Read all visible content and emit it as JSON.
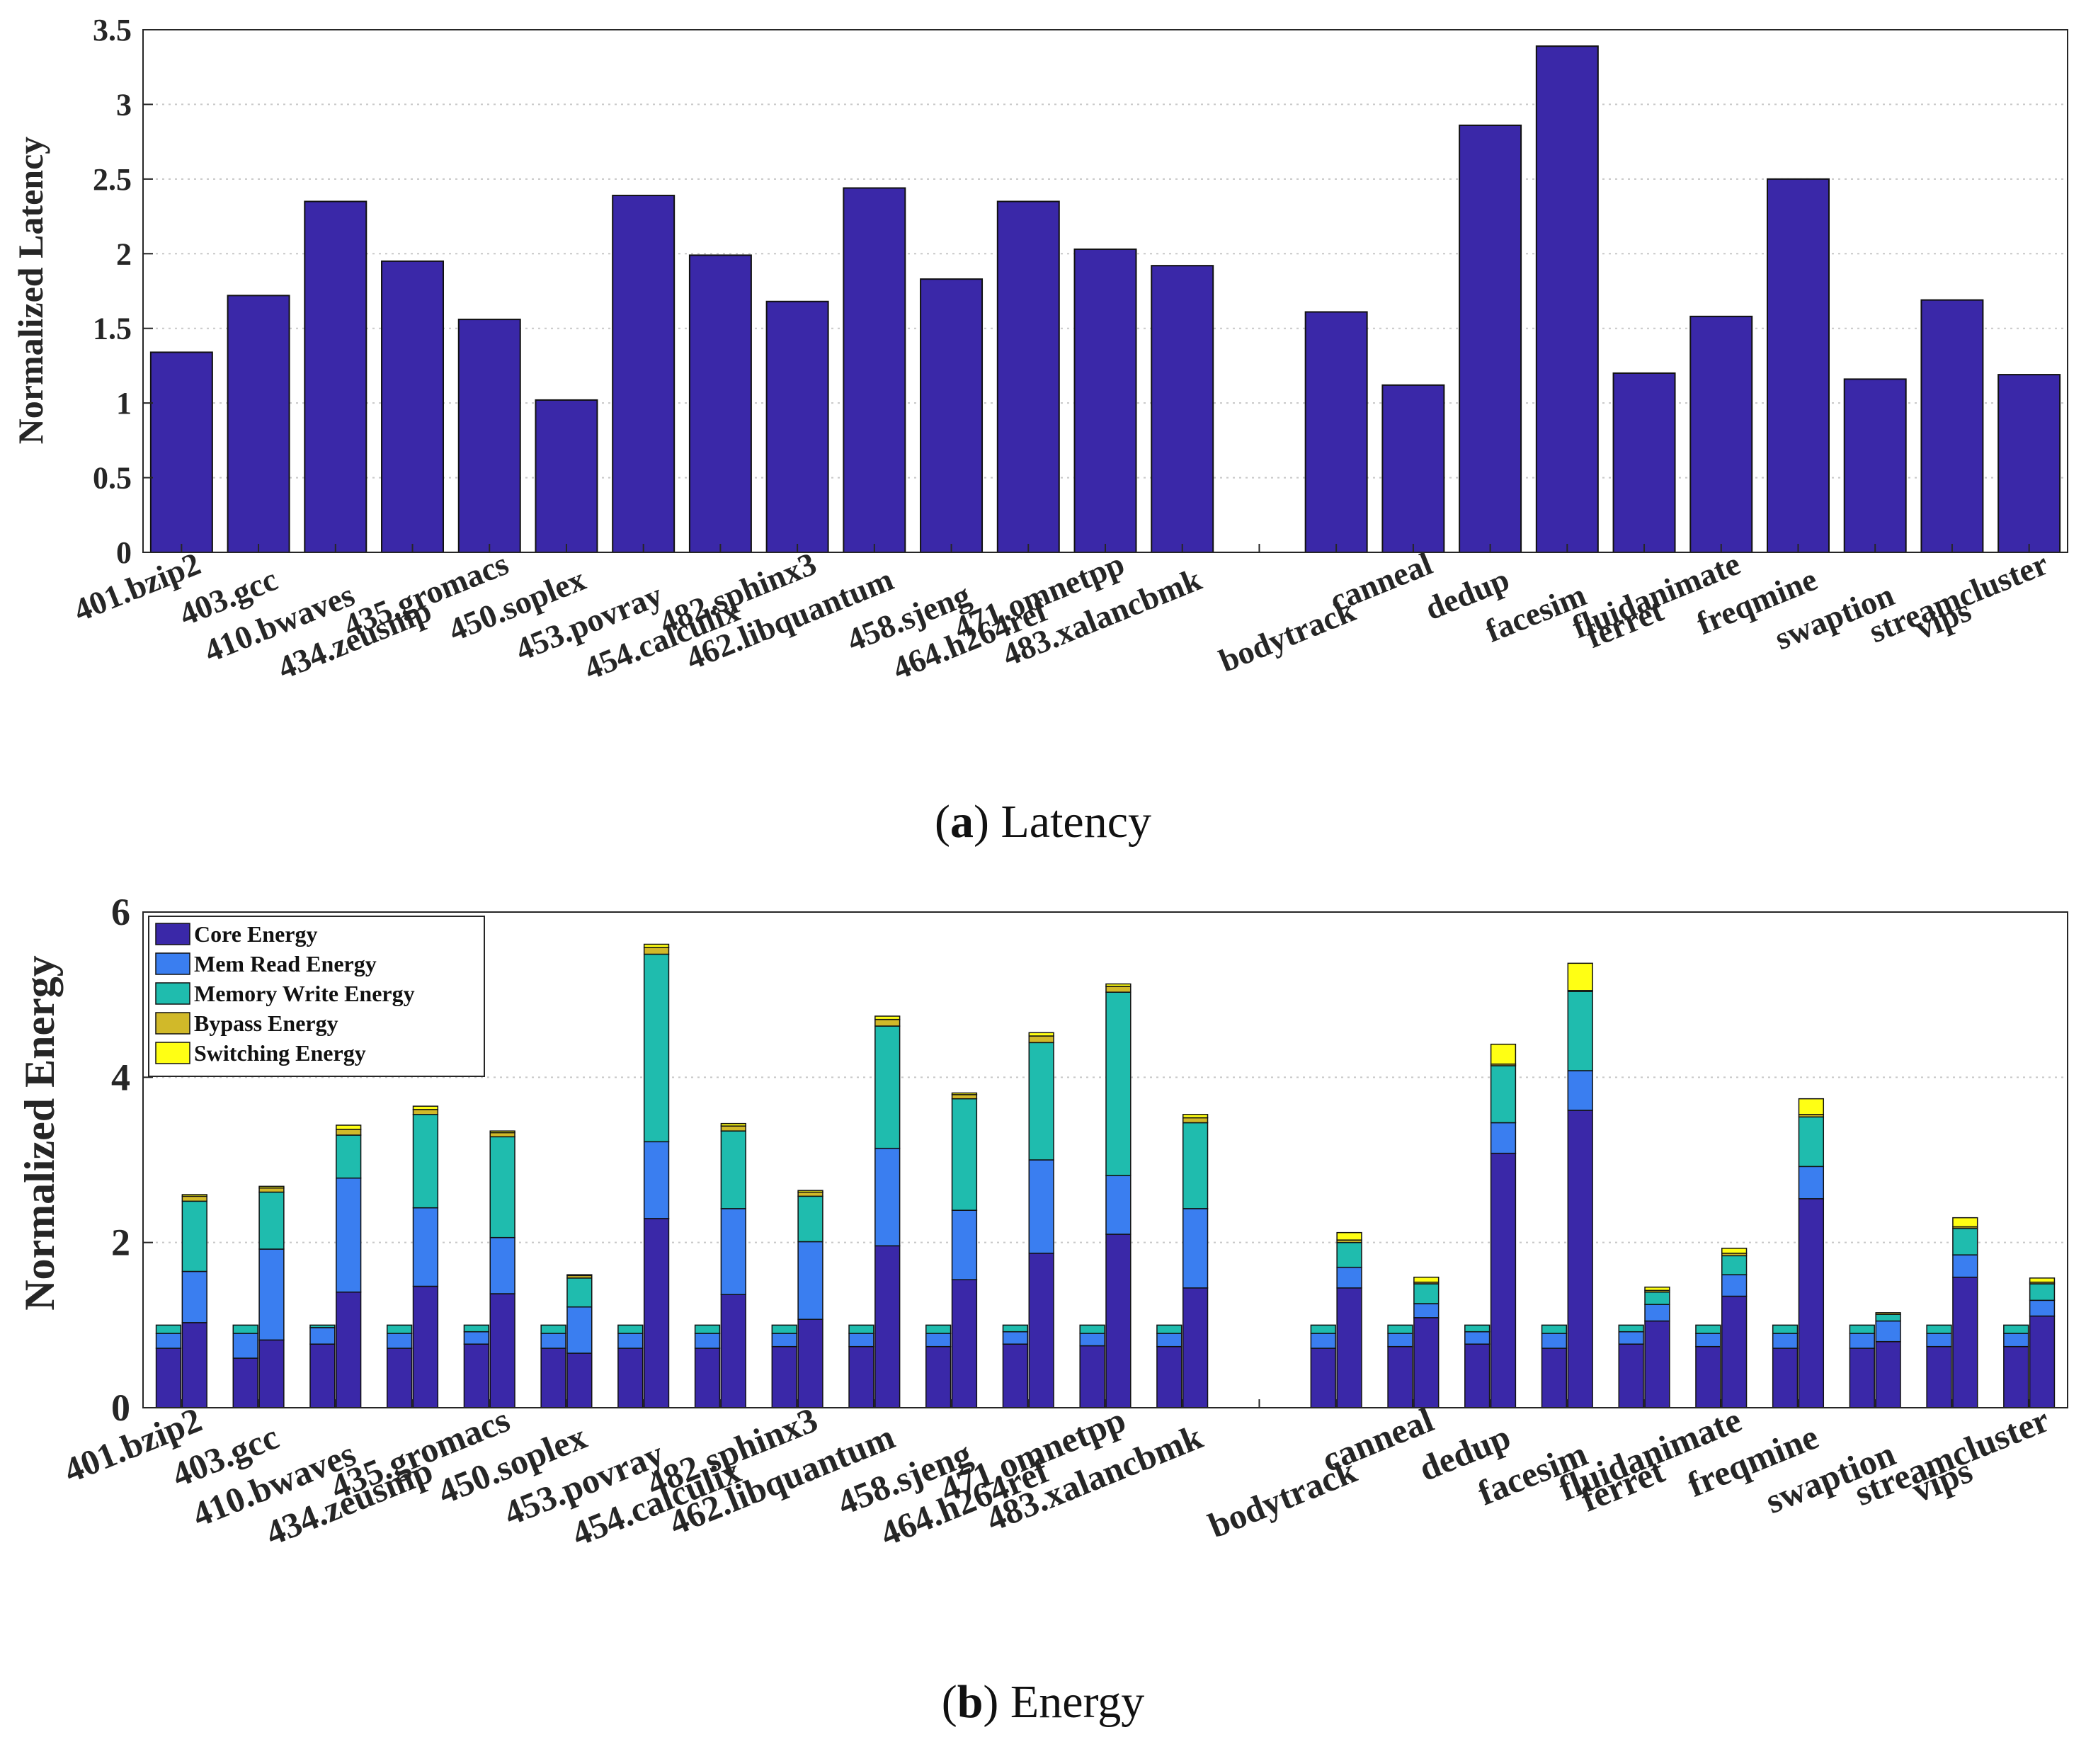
{
  "captions": {
    "a_letter": "a",
    "a_text": "Latency",
    "b_letter": "b",
    "b_text": "Energy"
  },
  "chart_data": [
    {
      "type": "bar",
      "ylabel": "Normalized Latency",
      "ylim": [
        0,
        3.5
      ],
      "yticks": [
        "0",
        "0.5",
        "1",
        "1.5",
        "2",
        "2.5",
        "3",
        "3.5"
      ],
      "grid": true,
      "categories": [
        "401.bzip2",
        "403.gcc",
        "410.bwaves",
        "434.zeusmp",
        "435.gromacs",
        "450.soplex",
        "453.povray",
        "454.calculix",
        "482.sphinx3",
        "462.libquantum",
        "458.sjeng",
        "464.h264ref",
        "471.omnetpp",
        "483.xalancbmk",
        "",
        "bodytrack",
        "canneal",
        "dedup",
        "facesim",
        "ferret",
        "fluidanimate",
        "freqmine",
        "swaption",
        "vips",
        "streamcluster"
      ],
      "values": [
        1.34,
        1.72,
        2.35,
        1.95,
        1.56,
        1.02,
        2.39,
        1.99,
        1.68,
        2.44,
        1.83,
        2.35,
        2.03,
        1.92,
        0,
        1.61,
        1.12,
        2.86,
        3.39,
        1.2,
        1.58,
        2.5,
        1.16,
        1.69,
        1.19
      ],
      "color": "#3a28a8"
    },
    {
      "type": "bar",
      "ylabel": "Normalized Energy",
      "ylim": [
        0,
        6
      ],
      "yticks": [
        "0",
        "2",
        "4",
        "6"
      ],
      "grid": true,
      "legend_position": "top-left",
      "categories": [
        "401.bzip2",
        "403.gcc",
        "410.bwaves",
        "434.zeusmp",
        "435.gromacs",
        "450.soplex",
        "453.povray",
        "454.calculix",
        "482.sphinx3",
        "462.libquantum",
        "458.sjeng",
        "464.h264ref",
        "471.omnetpp",
        "483.xalancbmk",
        "",
        "bodytrack",
        "canneal",
        "dedup",
        "facesim",
        "ferret",
        "fluidanimate",
        "freqmine",
        "swaption",
        "vips",
        "streamcluster"
      ],
      "series": [
        {
          "name": "Core Energy",
          "color": "#3a28a8"
        },
        {
          "name": "Mem Read Energy",
          "color": "#3a7ef0"
        },
        {
          "name": "Memory Write Energy",
          "color": "#1fbcae"
        },
        {
          "name": "Bypass Energy",
          "color": "#d1b929"
        },
        {
          "name": "Switching Energy",
          "color": "#ffff14"
        }
      ],
      "baseline_stacks": [
        [
          0.72,
          0.18,
          0.1,
          0,
          0
        ],
        [
          0.6,
          0.3,
          0.1,
          0,
          0
        ],
        [
          0.77,
          0.2,
          0.03,
          0,
          0
        ],
        [
          0.72,
          0.18,
          0.1,
          0,
          0
        ],
        [
          0.77,
          0.15,
          0.08,
          0,
          0
        ],
        [
          0.72,
          0.18,
          0.1,
          0,
          0
        ],
        [
          0.72,
          0.18,
          0.1,
          0,
          0
        ],
        [
          0.72,
          0.18,
          0.1,
          0,
          0
        ],
        [
          0.74,
          0.16,
          0.1,
          0,
          0
        ],
        [
          0.74,
          0.16,
          0.1,
          0,
          0
        ],
        [
          0.74,
          0.16,
          0.1,
          0,
          0
        ],
        [
          0.77,
          0.15,
          0.08,
          0,
          0
        ],
        [
          0.75,
          0.15,
          0.1,
          0,
          0
        ],
        [
          0.74,
          0.16,
          0.1,
          0,
          0
        ],
        [
          0,
          0,
          0,
          0,
          0
        ],
        [
          0.72,
          0.18,
          0.1,
          0,
          0
        ],
        [
          0.74,
          0.16,
          0.1,
          0,
          0
        ],
        [
          0.77,
          0.15,
          0.08,
          0,
          0
        ],
        [
          0.72,
          0.18,
          0.1,
          0,
          0
        ],
        [
          0.77,
          0.15,
          0.08,
          0,
          0
        ],
        [
          0.74,
          0.16,
          0.1,
          0,
          0
        ],
        [
          0.72,
          0.18,
          0.1,
          0,
          0
        ],
        [
          0.72,
          0.18,
          0.1,
          0,
          0
        ],
        [
          0.74,
          0.16,
          0.1,
          0,
          0
        ],
        [
          0.74,
          0.16,
          0.1,
          0,
          0
        ]
      ],
      "proposed_stacks": [
        [
          1.03,
          0.62,
          0.85,
          0.06,
          0.02
        ],
        [
          0.82,
          1.1,
          0.69,
          0.05,
          0.02
        ],
        [
          1.4,
          1.38,
          0.52,
          0.07,
          0.05
        ],
        [
          1.47,
          0.95,
          1.13,
          0.06,
          0.04
        ],
        [
          1.38,
          0.68,
          1.22,
          0.05,
          0.02
        ],
        [
          0.66,
          0.56,
          0.35,
          0.03,
          0.01
        ],
        [
          2.29,
          0.93,
          2.27,
          0.08,
          0.04
        ],
        [
          1.37,
          1.04,
          0.94,
          0.06,
          0.03
        ],
        [
          1.07,
          0.94,
          0.55,
          0.05,
          0.02
        ],
        [
          1.96,
          1.18,
          1.48,
          0.08,
          0.04
        ],
        [
          1.55,
          0.84,
          1.35,
          0.05,
          0.02
        ],
        [
          1.87,
          1.13,
          1.42,
          0.08,
          0.04
        ],
        [
          2.1,
          0.71,
          2.22,
          0.07,
          0.03
        ],
        [
          1.45,
          0.96,
          1.04,
          0.06,
          0.04
        ],
        [
          0,
          0,
          0,
          0,
          0
        ],
        [
          1.45,
          0.25,
          0.3,
          0.03,
          0.09
        ],
        [
          1.09,
          0.17,
          0.24,
          0.02,
          0.06
        ],
        [
          3.08,
          0.37,
          0.69,
          0.02,
          0.24
        ],
        [
          3.6,
          0.48,
          0.96,
          0.01,
          0.33
        ],
        [
          1.05,
          0.2,
          0.15,
          0.02,
          0.04
        ],
        [
          1.35,
          0.26,
          0.23,
          0.03,
          0.06
        ],
        [
          2.53,
          0.39,
          0.6,
          0.03,
          0.19
        ],
        [
          0.8,
          0.25,
          0.08,
          0.02,
          0.0
        ],
        [
          1.58,
          0.27,
          0.32,
          0.02,
          0.11
        ],
        [
          1.11,
          0.19,
          0.2,
          0.02,
          0.05
        ]
      ]
    }
  ]
}
